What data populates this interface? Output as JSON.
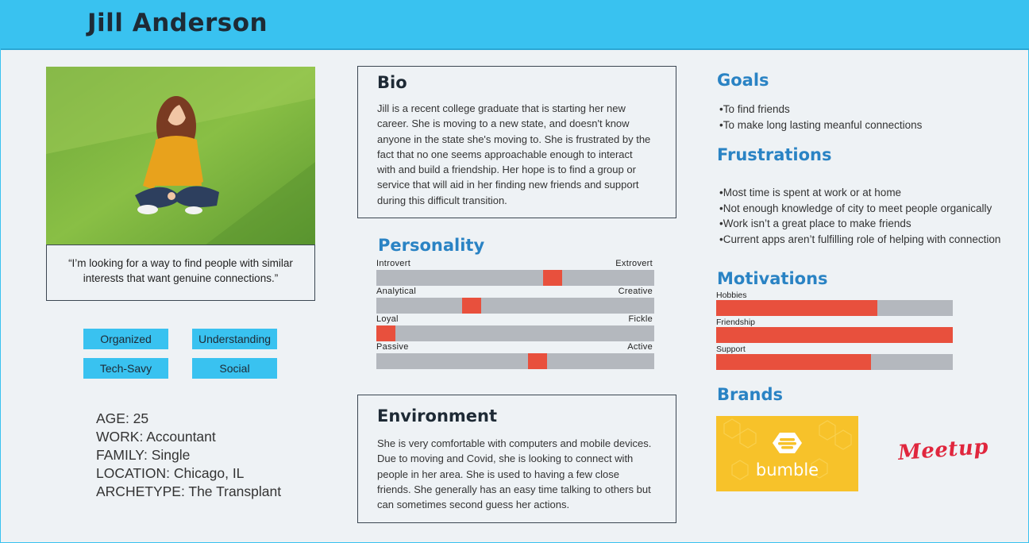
{
  "header": {
    "name": "Jill Anderson"
  },
  "quote": {
    "line1": "“I’m looking for a way to find people with similar",
    "line2": "interests that want genuine connections.”"
  },
  "tags": [
    "Organized",
    "Understanding",
    "Tech-Savy",
    "Social"
  ],
  "facts": {
    "age": "AGE: 25",
    "work": "WORK: Accountant",
    "family": "FAMILY: Single",
    "location": "LOCATION: Chicago, IL",
    "archetype": "ARCHETYPE: The Transplant"
  },
  "bio": {
    "title": "Bio",
    "lines": [
      "Jill is a recent college graduate that is starting her new",
      "career. She is moving to a new state, and doesn't know",
      "anyone in the state she's moving to. She is frustrated by the",
      "fact that no one seems approachable enough to interact",
      "with and build a friendship. Her hope is to find a group or",
      "service that will aid in her finding new friends and support",
      "during this difficult transition."
    ]
  },
  "personality": {
    "title": "Personality",
    "traits": [
      {
        "left": "Introvert",
        "right": "Extrovert",
        "level": 0.645
      },
      {
        "left": "Analytical",
        "right": "Creative",
        "level": 0.33
      },
      {
        "left": "Loyal",
        "right": "Fickle",
        "level": 0.0
      },
      {
        "left": "Passive",
        "right": "Active",
        "level": 0.585
      }
    ]
  },
  "environment": {
    "title": "Environment",
    "lines": [
      "She is very comfortable with computers and mobile devices.",
      "Due to moving and Covid, she is looking to connect with",
      "people in her area.  She is used to having a few close",
      "friends.  She generally has an easy time talking to others but",
      "can sometimes second guess her actions."
    ]
  },
  "goals": {
    "title": "Goals",
    "items": [
      "To find friends",
      "To make long lasting meanful connections"
    ]
  },
  "frustrations": {
    "title": "Frustrations",
    "items": [
      "Most time is spent at work or at home",
      "Not enough knowledge of city to meet people organically",
      "Work isn’t a great place to make friends",
      "Current apps aren’t fulfilling role of helping with connection"
    ]
  },
  "motivations": {
    "title": "Motivations",
    "items": [
      {
        "label": "Hobbies",
        "level": 0.68
      },
      {
        "label": "Friendship",
        "level": 1.0
      },
      {
        "label": "Support",
        "level": 0.655
      }
    ]
  },
  "brands": {
    "title": "Brands",
    "items": [
      "bumble",
      "Meetup"
    ]
  },
  "colors": {
    "header": "#39c2f0",
    "accent_title": "#2a83c4",
    "bar_fill": "#e8503d",
    "bar_track": "#b4b8be",
    "bumble": "#f7c22a",
    "meetup": "#e0263d"
  }
}
